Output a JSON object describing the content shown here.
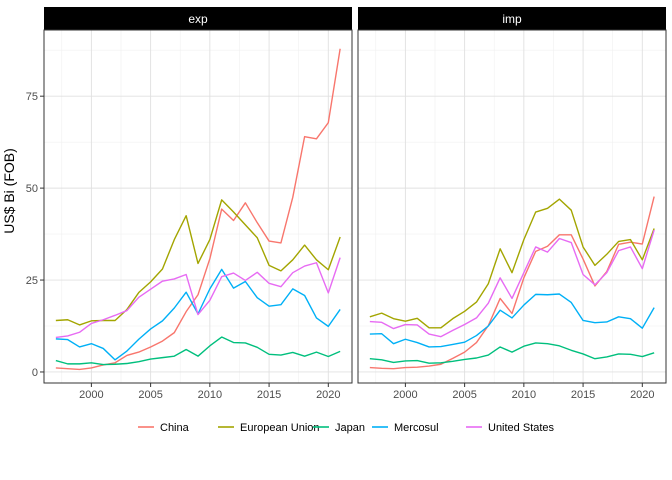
{
  "chart_data": {
    "type": "line",
    "ylabel": "US$ Bi (FOB)",
    "xlabel": "",
    "facets": [
      "exp",
      "imp"
    ],
    "xlim": [
      1996,
      2022
    ],
    "ylim": [
      -3,
      93
    ],
    "x_ticks": [
      2000,
      2005,
      2010,
      2015,
      2020
    ],
    "y_ticks": [
      0,
      25,
      50,
      75
    ],
    "legend_position": "bottom",
    "x": [
      1997,
      1998,
      1999,
      2000,
      2001,
      2002,
      2003,
      2004,
      2005,
      2006,
      2007,
      2008,
      2009,
      2010,
      2011,
      2012,
      2013,
      2014,
      2015,
      2016,
      2017,
      2018,
      2019,
      2020,
      2021
    ],
    "series": [
      {
        "name": "China",
        "color": "#F8766D",
        "exp": [
          1.1,
          0.9,
          0.7,
          1.1,
          1.9,
          2.5,
          4.5,
          5.4,
          6.8,
          8.4,
          10.7,
          16.4,
          21.0,
          30.8,
          44.3,
          41.2,
          46.0,
          40.6,
          35.6,
          35.1,
          47.5,
          64.0,
          63.4,
          67.8,
          87.9
        ],
        "imp": [
          1.2,
          1.0,
          0.9,
          1.2,
          1.3,
          1.6,
          2.1,
          3.7,
          5.4,
          8.0,
          12.6,
          20.0,
          15.9,
          25.6,
          32.8,
          34.2,
          37.3,
          37.3,
          30.7,
          23.4,
          27.3,
          34.7,
          35.3,
          34.8,
          47.7
        ]
      },
      {
        "name": "European Union",
        "color": "#A3A500",
        "exp": [
          14.0,
          14.2,
          12.8,
          13.9,
          14.0,
          14.0,
          17.0,
          21.6,
          24.5,
          28.0,
          36.0,
          42.5,
          29.5,
          36.0,
          46.8,
          43.5,
          40.0,
          36.5,
          29.0,
          27.5,
          30.5,
          34.5,
          30.5,
          27.8,
          36.7
        ],
        "imp": [
          15.0,
          16.0,
          14.5,
          13.8,
          14.6,
          12.0,
          12.0,
          14.5,
          16.5,
          19.0,
          24.0,
          33.5,
          27.0,
          36.0,
          43.5,
          44.5,
          47.0,
          44.0,
          34.0,
          29.0,
          32.0,
          35.5,
          36.0,
          30.5,
          39.0
        ]
      },
      {
        "name": "Japan",
        "color": "#00BF7D",
        "exp": [
          3.1,
          2.2,
          2.2,
          2.5,
          2.0,
          2.1,
          2.3,
          2.8,
          3.5,
          3.9,
          4.3,
          6.1,
          4.3,
          7.1,
          9.5,
          8.0,
          7.9,
          6.7,
          4.8,
          4.6,
          5.3,
          4.3,
          5.4,
          4.2,
          5.6
        ],
        "imp": [
          3.6,
          3.3,
          2.6,
          3.0,
          3.1,
          2.4,
          2.5,
          2.9,
          3.4,
          3.8,
          4.6,
          6.8,
          5.4,
          7.0,
          7.9,
          7.7,
          7.1,
          5.9,
          4.9,
          3.6,
          4.1,
          4.9,
          4.8,
          4.2,
          5.2
        ]
      },
      {
        "name": "Mercosul",
        "color": "#00B0F6",
        "exp": [
          9.0,
          8.8,
          6.8,
          7.7,
          6.4,
          3.3,
          5.7,
          8.9,
          11.7,
          13.9,
          17.4,
          21.7,
          15.8,
          22.6,
          27.9,
          22.8,
          24.6,
          20.2,
          17.9,
          18.3,
          22.6,
          20.8,
          14.7,
          12.4,
          17.0
        ],
        "imp": [
          10.3,
          10.4,
          7.7,
          8.9,
          8.0,
          6.8,
          6.9,
          7.5,
          8.1,
          9.9,
          12.5,
          16.8,
          14.7,
          18.2,
          21.1,
          21.0,
          21.2,
          18.9,
          14.0,
          13.4,
          13.6,
          15.0,
          14.5,
          11.9,
          17.5
        ]
      },
      {
        "name": "United States",
        "color": "#E76BF3",
        "exp": [
          9.4,
          9.8,
          10.8,
          13.2,
          14.2,
          15.4,
          16.7,
          20.3,
          22.5,
          24.7,
          25.3,
          26.5,
          15.6,
          19.5,
          25.9,
          26.9,
          24.9,
          27.1,
          24.1,
          23.2,
          27.0,
          28.8,
          29.7,
          21.5,
          31.1
        ],
        "imp": [
          13.7,
          13.5,
          11.8,
          12.9,
          12.8,
          10.3,
          9.6,
          11.3,
          12.9,
          14.7,
          18.7,
          25.6,
          20.0,
          27.0,
          34.0,
          32.6,
          36.3,
          35.2,
          26.5,
          23.7,
          27.0,
          33.0,
          34.0,
          28.1,
          38.6
        ]
      }
    ]
  }
}
